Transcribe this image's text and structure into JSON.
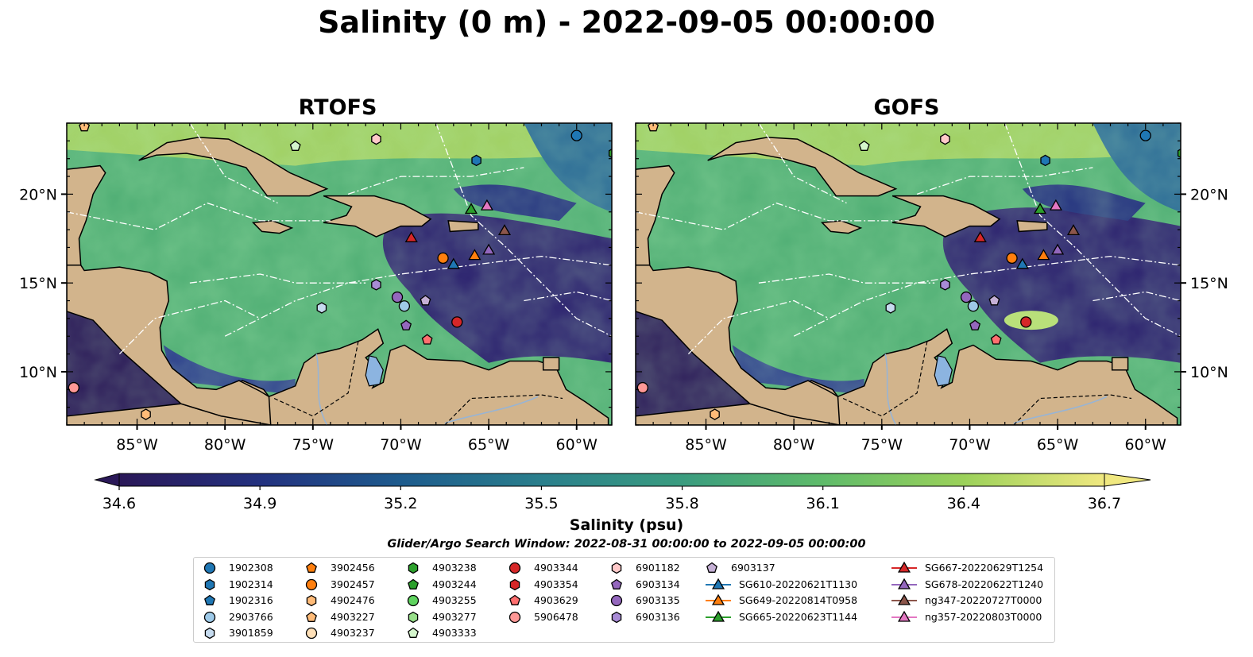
{
  "title": "Salinity (0 m) - 2022-09-05 00:00:00",
  "panels": [
    {
      "title": "RTOFS"
    },
    {
      "title": "GOFS"
    }
  ],
  "axes": {
    "lon_ticks": [
      {
        "value": -85,
        "label": "85°W"
      },
      {
        "value": -80,
        "label": "80°W"
      },
      {
        "value": -75,
        "label": "75°W"
      },
      {
        "value": -70,
        "label": "70°W"
      },
      {
        "value": -65,
        "label": "65°W"
      },
      {
        "value": -60,
        "label": "60°W"
      }
    ],
    "lat_ticks": [
      {
        "value": 20,
        "label": "20°N"
      },
      {
        "value": 15,
        "label": "15°N"
      },
      {
        "value": 10,
        "label": "10°N"
      }
    ],
    "lon_range": [
      -89,
      -58
    ],
    "lat_range": [
      7,
      24
    ]
  },
  "colorbar": {
    "label": "Salinity (psu)",
    "ticks": [
      "34.6",
      "34.9",
      "35.2",
      "35.5",
      "35.8",
      "36.1",
      "36.4",
      "36.7"
    ],
    "range": [
      34.6,
      36.7
    ],
    "colormap": [
      "#2a1858",
      "#23317f",
      "#1d5b8d",
      "#2a7f8c",
      "#3a9c7f",
      "#5fbb6a",
      "#9bd15a",
      "#f0e880"
    ]
  },
  "search_window": "Glider/Argo Search Window: 2022-08-31 00:00:00 to 2022-09-05 00:00:00",
  "colors": {
    "land": "#d2b48c",
    "lake": "#8cb4e0",
    "ocean_low": "#2a1858",
    "ocean_mid": "#3a9c7f",
    "ocean_high": "#e8e27a"
  },
  "legend": [
    {
      "label": "1902308",
      "marker": "circle",
      "color": "#1f77b4"
    },
    {
      "label": "1902314",
      "marker": "hexagon",
      "color": "#1f77b4"
    },
    {
      "label": "1902316",
      "marker": "pentagon",
      "color": "#1f77b4"
    },
    {
      "label": "2903766",
      "marker": "circle",
      "color": "#9ecae9"
    },
    {
      "label": "3901859",
      "marker": "hexagon",
      "color": "#c6dbef"
    },
    {
      "label": "3902456",
      "marker": "pentagon",
      "color": "#ff7f0e"
    },
    {
      "label": "3902457",
      "marker": "circle",
      "color": "#ff7f0e"
    },
    {
      "label": "4902476",
      "marker": "hexagon",
      "color": "#ffbb78"
    },
    {
      "label": "4903227",
      "marker": "pentagon",
      "color": "#ffbb78"
    },
    {
      "label": "4903237",
      "marker": "circle",
      "color": "#ffe0b8"
    },
    {
      "label": "4903238",
      "marker": "hexagon",
      "color": "#2ca02c"
    },
    {
      "label": "4903244",
      "marker": "pentagon",
      "color": "#2ca02c"
    },
    {
      "label": "4903255",
      "marker": "circle",
      "color": "#5fd35f"
    },
    {
      "label": "4903277",
      "marker": "hexagon",
      "color": "#98df8a"
    },
    {
      "label": "4903333",
      "marker": "pentagon",
      "color": "#d4f5cc"
    },
    {
      "label": "4903344",
      "marker": "circle",
      "color": "#d62728"
    },
    {
      "label": "4903354",
      "marker": "hexagon",
      "color": "#d62728"
    },
    {
      "label": "4903629",
      "marker": "pentagon",
      "color": "#ff6f6f"
    },
    {
      "label": "5906478",
      "marker": "circle",
      "color": "#ff9896"
    },
    {
      "label": "6901182",
      "marker": "hexagon",
      "color": "#ffc9c9"
    },
    {
      "label": "6903134",
      "marker": "pentagon",
      "color": "#9467bd"
    },
    {
      "label": "6903135",
      "marker": "circle",
      "color": "#9467bd"
    },
    {
      "label": "6903136",
      "marker": "hexagon",
      "color": "#a88bd6"
    },
    {
      "label": "6903137",
      "marker": "pentagon",
      "color": "#c5b0d5"
    },
    {
      "label": "SG610-20220621T1130",
      "marker": "triangle-line",
      "color": "#1f77b4"
    },
    {
      "label": "SG649-20220814T0958",
      "marker": "triangle-line",
      "color": "#ff7f0e"
    },
    {
      "label": "SG665-20220623T1144",
      "marker": "triangle-line",
      "color": "#2ca02c"
    },
    {
      "label": "SG667-20220629T1254",
      "marker": "triangle-line",
      "color": "#d62728"
    },
    {
      "label": "SG678-20220622T1240",
      "marker": "triangle-line",
      "color": "#9467bd"
    },
    {
      "label": "ng347-20220727T0000",
      "marker": "triangle-line",
      "color": "#8c564b"
    },
    {
      "label": "ng357-20220803T0000",
      "marker": "triangle-line",
      "color": "#e377c2"
    }
  ],
  "observations": [
    {
      "id": "1902308",
      "lon": -60.0,
      "lat": 23.3
    },
    {
      "id": "1902314",
      "lon": -65.7,
      "lat": 21.9
    },
    {
      "id": "2903766",
      "lon": -69.8,
      "lat": 13.7
    },
    {
      "id": "3901859",
      "lon": -74.5,
      "lat": 13.6
    },
    {
      "id": "3902457",
      "lon": -67.6,
      "lat": 16.4
    },
    {
      "id": "4902476",
      "lon": -84.5,
      "lat": 7.6
    },
    {
      "id": "4903238",
      "lon": -57.9,
      "lat": 22.3
    },
    {
      "id": "4903333",
      "lon": -76.0,
      "lat": 22.7
    },
    {
      "id": "4903344",
      "lon": -66.8,
      "lat": 12.8
    },
    {
      "id": "4903629",
      "lon": -68.5,
      "lat": 11.8
    },
    {
      "id": "5906478",
      "lon": -88.6,
      "lat": 9.1
    },
    {
      "id": "6901182",
      "lon": -71.4,
      "lat": 23.1
    },
    {
      "id": "6903134",
      "lon": -69.7,
      "lat": 12.6
    },
    {
      "id": "6903135",
      "lon": -70.2,
      "lat": 14.2
    },
    {
      "id": "6903136",
      "lon": -71.4,
      "lat": 14.9
    },
    {
      "id": "6903137",
      "lon": -68.6,
      "lat": 14.0
    },
    {
      "id": "SG610-20220621T1130",
      "lon": -67.0,
      "lat": 16.0
    },
    {
      "id": "SG649-20220814T0958",
      "lon": -65.8,
      "lat": 16.5
    },
    {
      "id": "SG665-20220623T1144",
      "lon": -66.0,
      "lat": 19.1
    },
    {
      "id": "SG667-20220629T1254",
      "lon": -69.4,
      "lat": 17.5
    },
    {
      "id": "SG678-20220622T1240",
      "lon": -65.0,
      "lat": 16.8
    },
    {
      "id": "ng347-20220727T0000",
      "lon": -64.1,
      "lat": 17.9
    },
    {
      "id": "ng357-20220803T0000",
      "lon": -65.1,
      "lat": 19.3
    },
    {
      "id": "4903227",
      "lon": -88.0,
      "lat": 23.8
    }
  ]
}
